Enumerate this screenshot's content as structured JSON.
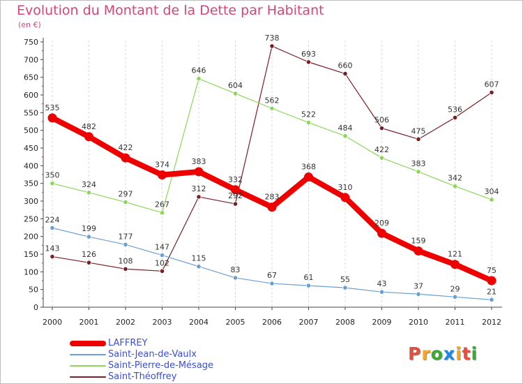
{
  "header": {
    "title": "Evolution du Montant de la Dette par Habitant",
    "unit": "(en €)"
  },
  "logo": {
    "text": "Proxiti",
    "colors": [
      "#e94e3c",
      "#f5a623",
      "#3aaa35",
      "#1e88e5",
      "#f5a623",
      "#e94e3c",
      "#3aaa35"
    ]
  },
  "chart_data": {
    "type": "line",
    "title": "Evolution du Montant de la Dette par Habitant",
    "ylabel": "(en €)",
    "xlabel": "",
    "x": [
      "2000",
      "2001",
      "2002",
      "2003",
      "2004",
      "2005",
      "2006",
      "2007",
      "2008",
      "2009",
      "2010",
      "2011",
      "2012"
    ],
    "ylim": [
      0,
      750
    ],
    "yticks": [
      0,
      50,
      100,
      150,
      200,
      250,
      300,
      350,
      400,
      450,
      500,
      550,
      600,
      650,
      700,
      750
    ],
    "grid": "vertical",
    "legend_position": "bottom-left",
    "series": [
      {
        "name": "LAFFREY",
        "color": "#ee0000",
        "values": [
          535,
          482,
          422,
          374,
          383,
          332,
          283,
          368,
          310,
          209,
          159,
          121,
          75
        ]
      },
      {
        "name": "Saint-Jean-de-Vaulx",
        "color": "#6a9fd0",
        "values": [
          224,
          199,
          177,
          147,
          115,
          83,
          67,
          61,
          55,
          43,
          37,
          29,
          21
        ]
      },
      {
        "name": "Saint-Pierre-de-Mésage",
        "color": "#8dd65a",
        "values": [
          350,
          324,
          297,
          267,
          646,
          604,
          562,
          522,
          484,
          422,
          383,
          342,
          304
        ]
      },
      {
        "name": "Saint-Théoffrey",
        "color": "#7a1f24",
        "values": [
          143,
          126,
          108,
          102,
          312,
          292,
          738,
          693,
          660,
          506,
          475,
          536,
          607
        ]
      }
    ]
  }
}
